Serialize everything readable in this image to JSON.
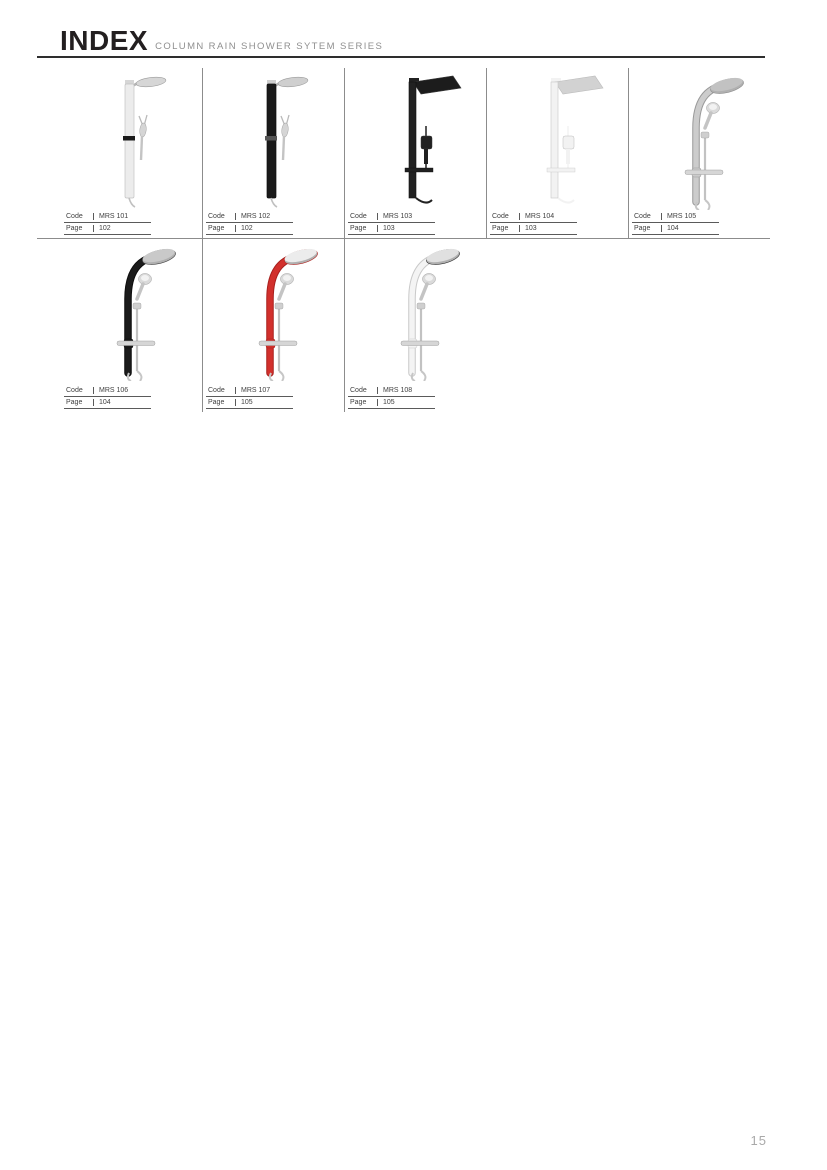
{
  "header": {
    "title": "INDEX",
    "subtitle": "COLUMN RAIN SHOWER SYTEM SERIES"
  },
  "spec_labels": {
    "code": "Code",
    "page": "Page"
  },
  "products": [
    {
      "code": "MRS 101",
      "page": "102",
      "variant": "straight-round",
      "colors": {
        "body": "#ececec",
        "stroke": "#c2c2c2",
        "head": "#d6d6d6",
        "accent": "#1a1a1a"
      }
    },
    {
      "code": "MRS 102",
      "page": "102",
      "variant": "straight-round",
      "colors": {
        "body": "#1a1a1a",
        "stroke": "#111111",
        "head": "#cfcfcf",
        "accent": "#555555"
      }
    },
    {
      "code": "MRS 103",
      "page": "103",
      "variant": "straight-square",
      "colors": {
        "body": "#212121",
        "stroke": "#0f0f0f",
        "head": "#1c1c1c",
        "accent": "#3a3a3a"
      }
    },
    {
      "code": "MRS 104",
      "page": "103",
      "variant": "straight-square",
      "colors": {
        "body": "#f2f2f2",
        "stroke": "#c6c6c6",
        "head": "#d2d2d2",
        "accent": "#bbbbbb"
      }
    },
    {
      "code": "MRS 105",
      "page": "104",
      "variant": "curved-round",
      "colors": {
        "body": "#cccccc",
        "stroke": "#999999",
        "head": "#c2c2c2",
        "accent": "#8f8f8f"
      }
    },
    {
      "code": "MRS 106",
      "page": "104",
      "variant": "curved-round",
      "colors": {
        "body": "#1b1b1b",
        "stroke": "#0d0d0d",
        "head": "#c9c9c9",
        "accent": "#444444"
      }
    },
    {
      "code": "MRS 107",
      "page": "105",
      "variant": "curved-round",
      "colors": {
        "body": "#d2302c",
        "stroke": "#a8201e",
        "head": "#ececec",
        "accent": "#b02724"
      }
    },
    {
      "code": "MRS 108",
      "page": "105",
      "variant": "curved-round",
      "colors": {
        "body": "#f4f4f4",
        "stroke": "#c9c9c9",
        "head": "#e0e0e0",
        "accent": "#333333"
      }
    }
  ],
  "rows": [
    5,
    3
  ],
  "page_number": "15",
  "theme": {
    "rule_dark": "#2e2e2e",
    "divider": "#8c8c8c",
    "spec_line": "#5a5a5a",
    "text_dark": "#231f20",
    "text_gray": "#8f8f8f",
    "spec_text": "#3f3f3f",
    "page_num": "#a9a9a9"
  }
}
